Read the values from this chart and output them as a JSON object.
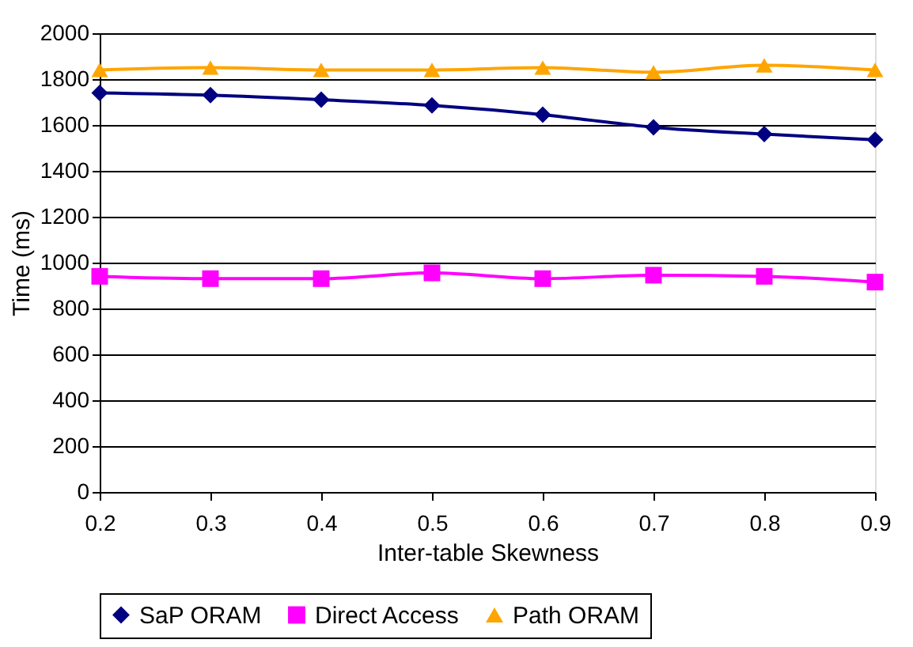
{
  "chart_data": {
    "type": "line",
    "xlabel": "Inter-table Skewness",
    "ylabel": "Time (ms)",
    "x": [
      0.2,
      0.3,
      0.4,
      0.5,
      0.6,
      0.7,
      0.8,
      0.9
    ],
    "series": [
      {
        "name": "SaP ORAM",
        "color": "#000080",
        "marker": "diamond",
        "values": [
          1740,
          1730,
          1710,
          1685,
          1645,
          1590,
          1560,
          1535
        ]
      },
      {
        "name": "Direct Access",
        "color": "#ff00ff",
        "marker": "square",
        "values": [
          940,
          930,
          930,
          955,
          930,
          945,
          940,
          915
        ]
      },
      {
        "name": "Path ORAM",
        "color": "#ffa500",
        "marker": "triangle",
        "values": [
          1840,
          1850,
          1840,
          1840,
          1850,
          1830,
          1860,
          1840
        ]
      }
    ],
    "xlim": [
      0.2,
      0.9
    ],
    "xticks": [
      0.2,
      0.3,
      0.4,
      0.5,
      0.6,
      0.7,
      0.8,
      0.9
    ],
    "ylim": [
      0,
      2000
    ],
    "yticks": [
      0,
      200,
      400,
      600,
      800,
      1000,
      1200,
      1400,
      1600,
      1800,
      2000
    ],
    "grid": "y",
    "legend": "bottom",
    "line_style": "solid"
  }
}
